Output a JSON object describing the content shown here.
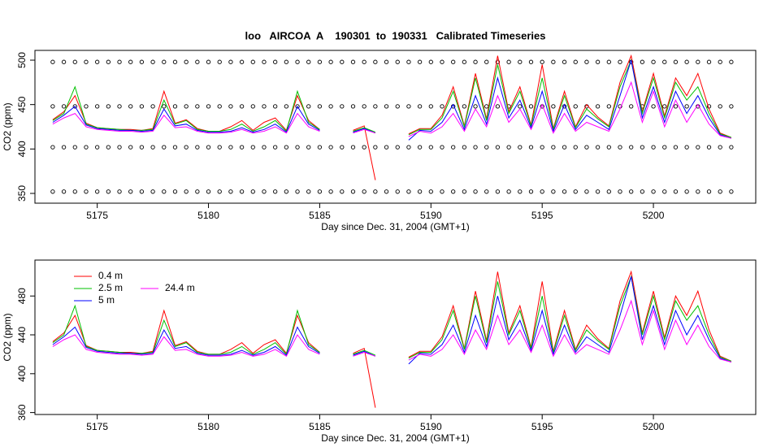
{
  "chart_data": [
    {
      "type": "line",
      "title": "loo   AIRCOA  A    190301  to  190331   Calibrated Timeseries",
      "xlabel": "Day since Dec. 31, 2004 (GMT+1)",
      "ylabel": "CO2 (ppm)",
      "xlim": [
        5172.2,
        5204.6
      ],
      "xticks": [
        5175,
        5180,
        5185,
        5190,
        5195,
        5200
      ],
      "ylim": [
        339,
        511
      ],
      "yticks": [
        350,
        400,
        450,
        500
      ],
      "x": [
        5173,
        5173.5,
        5174,
        5174.5,
        5175,
        5175.5,
        5176,
        5176.5,
        5177,
        5177.5,
        5178,
        5178.5,
        5179,
        5179.5,
        5180,
        5180.5,
        5181,
        5181.5,
        5182,
        5182.5,
        5183,
        5183.5,
        5184,
        5184.5,
        5185,
        5185.5,
        5186,
        5186.5,
        5187,
        5187.5,
        5188,
        5188.5,
        5189,
        5189.5,
        5190,
        5190.5,
        5191,
        5191.5,
        5192,
        5192.5,
        5193,
        5193.5,
        5194,
        5194.5,
        5195,
        5195.5,
        5196,
        5196.5,
        5197,
        5197.5,
        5198,
        5198.5,
        5199,
        5199.5,
        5200,
        5200.5,
        5201,
        5201.5,
        5202,
        5202.5,
        5203,
        5203.5
      ],
      "series": [
        {
          "mode": "points",
          "color": "#000000",
          "values": [
            498,
            498,
            498,
            498,
            498,
            498,
            498,
            498,
            498,
            498,
            498,
            498,
            498,
            498,
            498,
            498,
            498,
            498,
            498,
            498,
            498,
            498,
            498,
            498,
            498,
            498,
            498,
            498,
            498,
            498,
            498,
            498,
            498,
            498,
            498,
            498,
            498,
            498,
            498,
            498,
            498,
            498,
            498,
            498,
            498,
            498,
            498,
            498,
            498,
            498,
            498,
            498,
            498,
            498,
            498,
            498,
            498,
            498,
            498,
            498,
            498,
            498
          ]
        },
        {
          "mode": "points",
          "color": "#000000",
          "values": [
            448,
            448,
            448,
            448,
            448,
            448,
            448,
            448,
            448,
            448,
            448,
            448,
            448,
            448,
            448,
            448,
            448,
            448,
            448,
            448,
            448,
            448,
            448,
            448,
            448,
            448,
            448,
            448,
            448,
            448,
            448,
            448,
            448,
            448,
            448,
            448,
            448,
            448,
            448,
            448,
            448,
            448,
            448,
            448,
            448,
            448,
            448,
            448,
            448,
            448,
            448,
            448,
            448,
            448,
            448,
            448,
            448,
            448,
            448,
            448,
            448,
            448
          ]
        },
        {
          "mode": "points",
          "color": "#000000",
          "values": [
            402,
            402,
            402,
            402,
            402,
            402,
            402,
            402,
            402,
            402,
            402,
            402,
            402,
            402,
            402,
            402,
            402,
            402,
            402,
            402,
            402,
            402,
            402,
            402,
            402,
            402,
            402,
            402,
            402,
            402,
            402,
            402,
            402,
            402,
            402,
            402,
            402,
            402,
            402,
            402,
            402,
            402,
            402,
            402,
            402,
            402,
            402,
            402,
            402,
            402,
            402,
            402,
            402,
            402,
            402,
            402,
            402,
            402,
            402,
            402,
            402,
            402
          ]
        },
        {
          "mode": "points",
          "color": "#000000",
          "values": [
            352,
            352,
            352,
            352,
            352,
            352,
            352,
            352,
            352,
            352,
            352,
            352,
            352,
            352,
            352,
            352,
            352,
            352,
            352,
            352,
            352,
            352,
            352,
            352,
            352,
            352,
            352,
            352,
            352,
            352,
            352,
            352,
            352,
            352,
            352,
            352,
            352,
            352,
            352,
            352,
            352,
            352,
            352,
            352,
            352,
            352,
            352,
            352,
            352,
            352,
            352,
            352,
            352,
            352,
            352,
            352,
            352,
            352,
            352,
            352,
            352,
            352
          ]
        },
        {
          "mode": "line",
          "color": "#ff0000",
          "values": [
            433,
            442,
            460,
            429,
            424,
            423,
            422,
            422,
            421,
            423,
            465,
            429,
            433,
            423,
            420,
            420,
            425,
            432,
            421,
            430,
            435,
            421,
            460,
            432,
            422,
            null,
            null,
            421,
            426,
            365,
            null,
            null,
            417,
            423,
            423,
            438,
            470,
            426,
            485,
            434,
            505,
            442,
            470,
            427,
            495,
            423,
            465,
            425,
            450,
            436,
            426,
            475,
            505,
            442,
            485,
            437,
            480,
            460,
            485,
            445,
            418,
            413
          ]
        },
        {
          "mode": "line",
          "color": "#00c000",
          "values": [
            432,
            440,
            470,
            428,
            424,
            423,
            422,
            421,
            421,
            422,
            455,
            428,
            432,
            422,
            420,
            420,
            422,
            428,
            420,
            425,
            432,
            420,
            465,
            430,
            422,
            null,
            null,
            420,
            424,
            419,
            null,
            null,
            416,
            422,
            422,
            435,
            465,
            425,
            480,
            432,
            495,
            440,
            465,
            426,
            480,
            422,
            460,
            424,
            445,
            434,
            425,
            470,
            500,
            440,
            480,
            435,
            475,
            455,
            470,
            440,
            417,
            413
          ]
        },
        {
          "mode": "line",
          "color": "#0000ff",
          "values": [
            430,
            438,
            448,
            427,
            423,
            422,
            421,
            421,
            420,
            421,
            445,
            426,
            428,
            421,
            419,
            419,
            420,
            424,
            419,
            422,
            428,
            419,
            448,
            428,
            421,
            null,
            null,
            419,
            423,
            418,
            null,
            null,
            410,
            421,
            420,
            430,
            450,
            422,
            460,
            428,
            480,
            435,
            455,
            424,
            465,
            420,
            450,
            422,
            438,
            430,
            422,
            460,
            500,
            435,
            470,
            430,
            465,
            440,
            460,
            435,
            416,
            412
          ]
        },
        {
          "mode": "line",
          "color": "#ff00ff",
          "values": [
            428,
            435,
            440,
            425,
            422,
            421,
            420,
            420,
            419,
            420,
            438,
            424,
            425,
            420,
            418,
            418,
            419,
            422,
            418,
            420,
            425,
            418,
            440,
            425,
            420,
            null,
            null,
            418,
            422,
            418,
            null,
            null,
            414,
            420,
            418,
            425,
            440,
            420,
            445,
            425,
            460,
            430,
            445,
            422,
            450,
            418,
            440,
            420,
            430,
            425,
            420,
            445,
            475,
            430,
            465,
            425,
            455,
            430,
            450,
            428,
            415,
            412
          ]
        }
      ]
    },
    {
      "type": "line",
      "xlabel": "Day since Dec. 31, 2004 (GMT+1)",
      "ylabel": "CO2 (ppm)",
      "legend": "top-left",
      "xlim": [
        5172.2,
        5204.6
      ],
      "xticks": [
        5175,
        5180,
        5185,
        5190,
        5195,
        5200
      ],
      "ylim": [
        358,
        517
      ],
      "yticks": [
        360,
        400,
        440,
        480
      ],
      "x": [
        5173,
        5173.5,
        5174,
        5174.5,
        5175,
        5175.5,
        5176,
        5176.5,
        5177,
        5177.5,
        5178,
        5178.5,
        5179,
        5179.5,
        5180,
        5180.5,
        5181,
        5181.5,
        5182,
        5182.5,
        5183,
        5183.5,
        5184,
        5184.5,
        5185,
        5185.5,
        5186,
        5186.5,
        5187,
        5187.5,
        5188,
        5188.5,
        5189,
        5189.5,
        5190,
        5190.5,
        5191,
        5191.5,
        5192,
        5192.5,
        5193,
        5193.5,
        5194,
        5194.5,
        5195,
        5195.5,
        5196,
        5196.5,
        5197,
        5197.5,
        5198,
        5198.5,
        5199,
        5199.5,
        5200,
        5200.5,
        5201,
        5201.5,
        5202,
        5202.5,
        5203,
        5203.5
      ],
      "series": [
        {
          "name": "0.4 m",
          "mode": "line",
          "color": "#ff0000",
          "values": [
            433,
            442,
            460,
            429,
            424,
            423,
            422,
            422,
            421,
            423,
            465,
            429,
            433,
            423,
            420,
            420,
            425,
            432,
            421,
            430,
            435,
            421,
            460,
            432,
            422,
            null,
            null,
            421,
            426,
            365,
            null,
            null,
            417,
            423,
            423,
            438,
            470,
            426,
            485,
            434,
            505,
            442,
            470,
            427,
            495,
            423,
            465,
            425,
            450,
            436,
            426,
            475,
            505,
            442,
            485,
            437,
            480,
            460,
            485,
            445,
            418,
            413
          ]
        },
        {
          "name": "2.5 m",
          "mode": "line",
          "color": "#00c000",
          "values": [
            432,
            440,
            470,
            428,
            424,
            423,
            422,
            421,
            421,
            422,
            455,
            428,
            432,
            422,
            420,
            420,
            422,
            428,
            420,
            425,
            432,
            420,
            465,
            430,
            422,
            null,
            null,
            420,
            424,
            419,
            null,
            null,
            416,
            422,
            422,
            435,
            465,
            425,
            480,
            432,
            495,
            440,
            465,
            426,
            480,
            422,
            460,
            424,
            445,
            434,
            425,
            470,
            500,
            440,
            480,
            435,
            475,
            455,
            470,
            440,
            417,
            413
          ]
        },
        {
          "name": "5 m",
          "mode": "line",
          "color": "#0000ff",
          "values": [
            430,
            438,
            448,
            427,
            423,
            422,
            421,
            421,
            420,
            421,
            445,
            426,
            428,
            421,
            419,
            419,
            420,
            424,
            419,
            422,
            428,
            419,
            448,
            428,
            421,
            null,
            null,
            419,
            423,
            418,
            null,
            null,
            410,
            421,
            420,
            430,
            450,
            422,
            460,
            428,
            480,
            435,
            455,
            424,
            465,
            420,
            450,
            422,
            438,
            430,
            422,
            460,
            500,
            435,
            470,
            430,
            465,
            440,
            460,
            435,
            416,
            412
          ]
        },
        {
          "name": "24.4 m",
          "mode": "line",
          "color": "#ff00ff",
          "values": [
            428,
            435,
            440,
            425,
            422,
            421,
            420,
            420,
            419,
            420,
            438,
            424,
            425,
            420,
            418,
            418,
            419,
            422,
            418,
            420,
            425,
            418,
            440,
            425,
            420,
            null,
            null,
            418,
            422,
            418,
            null,
            null,
            414,
            420,
            418,
            425,
            440,
            420,
            445,
            425,
            460,
            430,
            445,
            422,
            450,
            418,
            440,
            420,
            430,
            425,
            420,
            445,
            475,
            430,
            465,
            425,
            455,
            430,
            450,
            428,
            415,
            412
          ]
        }
      ]
    }
  ]
}
